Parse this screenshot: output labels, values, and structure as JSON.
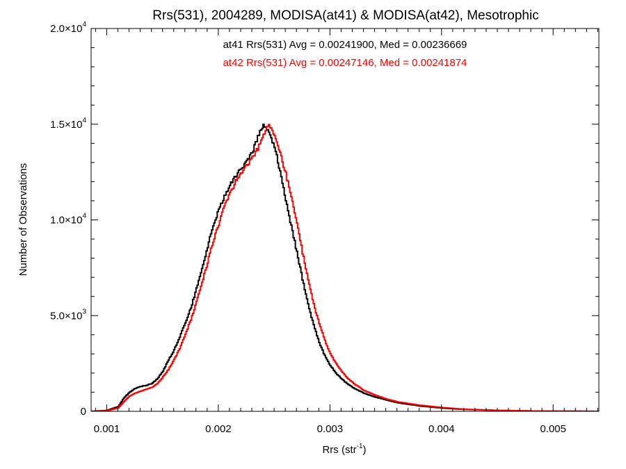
{
  "chart_data": {
    "type": "line",
    "title": "Rrs(531), 2004289, MODISA(at41) & MODISA(at42), Mesotrophic",
    "xlabel_main": "Rrs (str",
    "xlabel_sup": "-1",
    "xlabel_tail": ")",
    "ylabel": "Number of Observations",
    "xlim": [
      0.00086,
      0.00541
    ],
    "ylim": [
      0,
      20000
    ],
    "x_ticks": [
      0.001,
      0.002,
      0.003,
      0.004,
      0.005
    ],
    "x_tick_labels": [
      "0.001",
      "0.002",
      "0.003",
      "0.004",
      "0.005"
    ],
    "y_ticks": [
      0,
      5000,
      10000,
      15000,
      20000
    ],
    "y_tick_labels": [
      {
        "mant": "0",
        "exp": ""
      },
      {
        "mant": "5.0×10",
        "exp": "3"
      },
      {
        "mant": "1.0×10",
        "exp": "4"
      },
      {
        "mant": "1.5×10",
        "exp": "4"
      },
      {
        "mant": "2.0×10",
        "exp": "4"
      }
    ],
    "grid": false,
    "colors": {
      "at41": "#000000",
      "at42": "#ff0000"
    },
    "annotations": [
      {
        "text": "at41 Rrs(531) Avg = 0.00241900, Med = 0.00236669",
        "color": "#000000"
      },
      {
        "text": "at42 Rrs(531) Avg = 0.00247146, Med = 0.00241874",
        "color": "#ff0000"
      }
    ],
    "series": [
      {
        "key": "at41",
        "x": [
          0.00086,
          0.001,
          0.0011,
          0.00115,
          0.0012,
          0.00125,
          0.0013,
          0.00135,
          0.0014,
          0.00145,
          0.0015,
          0.00155,
          0.0016,
          0.00165,
          0.0017,
          0.00175,
          0.0018,
          0.00185,
          0.0019,
          0.00195,
          0.002,
          0.00205,
          0.0021,
          0.00215,
          0.0022,
          0.00225,
          0.0023,
          0.00235,
          0.0024,
          0.00245,
          0.0025,
          0.00255,
          0.0026,
          0.00265,
          0.0027,
          0.00275,
          0.0028,
          0.00285,
          0.0029,
          0.00295,
          0.003,
          0.00305,
          0.0031,
          0.00315,
          0.0032,
          0.0033,
          0.0034,
          0.0035,
          0.0036,
          0.0038,
          0.004,
          0.0042,
          0.0045,
          0.0048,
          0.00541
        ],
        "y": [
          0,
          50,
          250,
          700,
          1000,
          1200,
          1300,
          1350,
          1450,
          1700,
          2100,
          2700,
          3200,
          3900,
          4600,
          5400,
          6400,
          7500,
          8600,
          9700,
          10500,
          11200,
          11800,
          12300,
          12700,
          13100,
          13500,
          14300,
          15000,
          14700,
          13800,
          12500,
          11000,
          9700,
          8300,
          6900,
          5600,
          4500,
          3600,
          2900,
          2400,
          2000,
          1700,
          1450,
          1250,
          950,
          750,
          600,
          450,
          280,
          170,
          100,
          50,
          20,
          0
        ]
      },
      {
        "key": "at42",
        "x": [
          0.00086,
          0.001,
          0.0011,
          0.00115,
          0.0012,
          0.00125,
          0.0013,
          0.00135,
          0.0014,
          0.00145,
          0.0015,
          0.00155,
          0.0016,
          0.00165,
          0.0017,
          0.00175,
          0.0018,
          0.00185,
          0.0019,
          0.00195,
          0.002,
          0.00205,
          0.0021,
          0.00215,
          0.0022,
          0.00225,
          0.0023,
          0.00235,
          0.0024,
          0.00245,
          0.0025,
          0.00255,
          0.0026,
          0.00265,
          0.0027,
          0.00275,
          0.0028,
          0.00285,
          0.0029,
          0.00295,
          0.003,
          0.00305,
          0.0031,
          0.00315,
          0.0032,
          0.0033,
          0.0034,
          0.0035,
          0.0036,
          0.0038,
          0.004,
          0.0042,
          0.0045,
          0.0048,
          0.00541
        ],
        "y": [
          0,
          30,
          180,
          500,
          800,
          950,
          1050,
          1150,
          1250,
          1450,
          1800,
          2200,
          2700,
          3300,
          4000,
          4800,
          5700,
          6700,
          7800,
          8900,
          9800,
          10700,
          11400,
          12000,
          12400,
          12800,
          13200,
          13700,
          14500,
          15000,
          14400,
          13500,
          12400,
          11200,
          9800,
          8300,
          6900,
          5600,
          4600,
          3700,
          3000,
          2500,
          2100,
          1750,
          1500,
          1100,
          850,
          650,
          500,
          320,
          200,
          110,
          50,
          20,
          0
        ]
      }
    ]
  }
}
